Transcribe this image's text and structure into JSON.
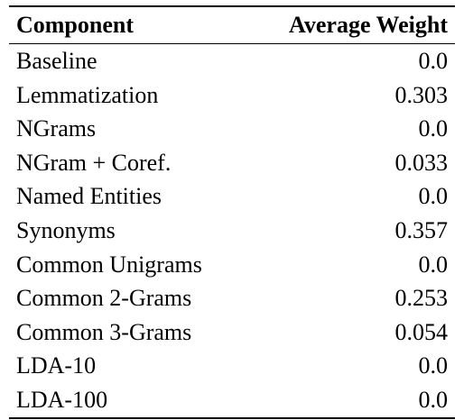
{
  "table": {
    "headers": {
      "component": "Component",
      "weight": "Average Weight"
    },
    "rows": [
      {
        "component": "Baseline",
        "weight": "0.0"
      },
      {
        "component": "Lemmatization",
        "weight": "0.303"
      },
      {
        "component": "NGrams",
        "weight": "0.0"
      },
      {
        "component": "NGram + Coref.",
        "weight": "0.033"
      },
      {
        "component": "Named Entities",
        "weight": "0.0"
      },
      {
        "component": "Synonyms",
        "weight": "0.357"
      },
      {
        "component": "Common Unigrams",
        "weight": "0.0"
      },
      {
        "component": "Common 2-Grams",
        "weight": "0.253"
      },
      {
        "component": "Common 3-Grams",
        "weight": "0.054"
      },
      {
        "component": "LDA-10",
        "weight": "0.0"
      },
      {
        "component": "LDA-100",
        "weight": "0.0"
      }
    ]
  }
}
